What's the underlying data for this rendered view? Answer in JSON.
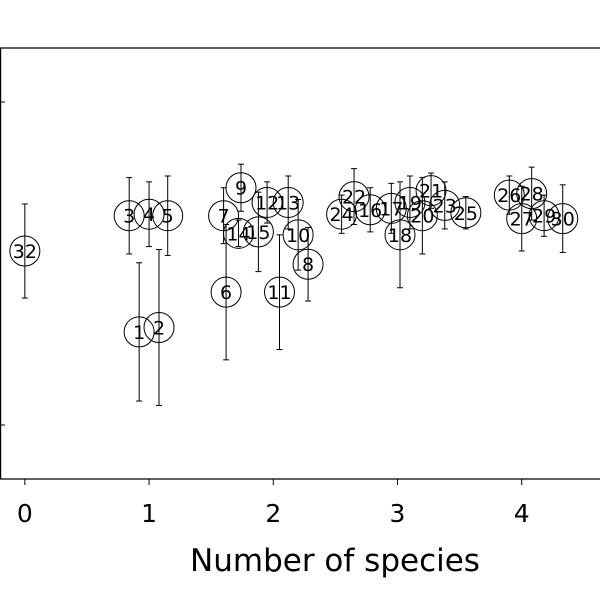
{
  "chart_data": {
    "type": "scatter",
    "title": "",
    "xlabel": "Number of species",
    "ylabel": "",
    "xlim": [
      -0.2,
      4.63
    ],
    "ylim": [
      -1.55,
      1.38
    ],
    "x_ticks": [
      0,
      1,
      2,
      3,
      4
    ],
    "x_tick_labels": [
      "0",
      "1",
      "2",
      "3",
      "4"
    ],
    "grid": false,
    "legend": "none",
    "colors": {
      "marker_edge": "#000000",
      "errorbar": "#000000",
      "axis": "#000000",
      "text": "#000000"
    },
    "points": [
      {
        "label": "1",
        "x": 0.92,
        "y": -0.55,
        "err": 0.47
      },
      {
        "label": "2",
        "x": 1.08,
        "y": -0.52,
        "err": 0.53
      },
      {
        "label": "3",
        "x": 0.84,
        "y": 0.24,
        "err": 0.26
      },
      {
        "label": "4",
        "x": 1.0,
        "y": 0.25,
        "err": 0.22
      },
      {
        "label": "5",
        "x": 1.15,
        "y": 0.24,
        "err": 0.27
      },
      {
        "label": "6",
        "x": 1.62,
        "y": -0.28,
        "err": 0.46
      },
      {
        "label": "7",
        "x": 1.6,
        "y": 0.24,
        "err": 0.19
      },
      {
        "label": "9",
        "x": 1.74,
        "y": 0.43,
        "err": 0.16
      },
      {
        "label": "14",
        "x": 1.72,
        "y": 0.12,
        "err": 0.09
      },
      {
        "label": "15",
        "x": 1.88,
        "y": 0.13,
        "err": 0.27
      },
      {
        "label": "12",
        "x": 1.95,
        "y": 0.33,
        "err": 0.14
      },
      {
        "label": "13",
        "x": 2.12,
        "y": 0.33,
        "err": 0.18
      },
      {
        "label": "10",
        "x": 2.2,
        "y": 0.11,
        "err": 0.24
      },
      {
        "label": "11",
        "x": 2.05,
        "y": -0.28,
        "err": 0.39
      },
      {
        "label": "8",
        "x": 2.28,
        "y": -0.09,
        "err": 0.25
      },
      {
        "label": "24",
        "x": 2.55,
        "y": 0.25,
        "err": 0.13
      },
      {
        "label": "22",
        "x": 2.65,
        "y": 0.37,
        "err": 0.19
      },
      {
        "label": "16",
        "x": 2.78,
        "y": 0.28,
        "err": 0.15
      },
      {
        "label": "17",
        "x": 2.95,
        "y": 0.29,
        "err": 0.17
      },
      {
        "label": "18",
        "x": 3.02,
        "y": 0.11,
        "err": 0.36
      },
      {
        "label": "19",
        "x": 3.1,
        "y": 0.33,
        "err": 0.18
      },
      {
        "label": "20",
        "x": 3.2,
        "y": 0.24,
        "err": 0.26
      },
      {
        "label": "21",
        "x": 3.27,
        "y": 0.41,
        "err": 0.12
      },
      {
        "label": "23",
        "x": 3.38,
        "y": 0.31,
        "err": 0.16
      },
      {
        "label": "25",
        "x": 3.55,
        "y": 0.26,
        "err": 0.11
      },
      {
        "label": "26",
        "x": 3.9,
        "y": 0.38,
        "err": 0.13
      },
      {
        "label": "27",
        "x": 4.0,
        "y": 0.22,
        "err": 0.22
      },
      {
        "label": "28",
        "x": 4.08,
        "y": 0.39,
        "err": 0.18
      },
      {
        "label": "29",
        "x": 4.18,
        "y": 0.24,
        "err": 0.14
      },
      {
        "label": "30",
        "x": 4.33,
        "y": 0.22,
        "err": 0.23
      },
      {
        "label": "32",
        "x": 0.0,
        "y": 0.0,
        "err": 0.32
      }
    ]
  }
}
